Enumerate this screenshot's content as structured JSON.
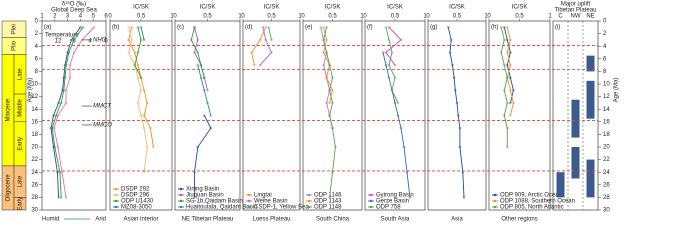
{
  "chart_data": [
    {
      "type": "timescale",
      "ylabel": "Age (Ma)",
      "ylim": [
        0,
        30
      ],
      "yticks": [
        0,
        2,
        4,
        6,
        8,
        10,
        12,
        14,
        16,
        18,
        20,
        22,
        24,
        26,
        28,
        30
      ],
      "hlines": [
        3.9,
        7.7,
        15.8,
        23.8
      ],
      "hline_color": "#d9452b",
      "epochs": [
        {
          "name": "Plei",
          "range": [
            0,
            2.6
          ],
          "color": "#fff6a8"
        },
        {
          "name": "Plio",
          "range": [
            2.6,
            5.3
          ],
          "color": "#ffff80"
        },
        {
          "name": "Miocene",
          "range": [
            5.3,
            23
          ],
          "color": "#ffff00"
        },
        {
          "name": "Oligocene",
          "range": [
            23,
            30
          ],
          "color": "#fdc07a"
        }
      ],
      "stages": [
        {
          "name": "Late",
          "range": [
            5.3,
            11.6
          ],
          "color": "#ffff00"
        },
        {
          "name": "Middle",
          "range": [
            11.6,
            16
          ],
          "color": "#ffff00"
        },
        {
          "name": "Early",
          "range": [
            16,
            23
          ],
          "color": "#ffff00"
        },
        {
          "name": "Late",
          "range": [
            23,
            28
          ],
          "color": "#fdc07a"
        },
        {
          "name": "Early",
          "range": [
            28,
            30
          ],
          "color": "#fdc07a"
        }
      ]
    },
    {
      "type": "line",
      "label": "(a)",
      "title": "δ¹⁸O (‰)",
      "subtitle": "Global Deep Sea",
      "xlim": [
        1,
        6
      ],
      "xticks": [
        1,
        2,
        3,
        4,
        5,
        6
      ],
      "x2label": "Temperature",
      "x2lim": [
        16,
        0
      ],
      "x2ticks": [
        12,
        8,
        4,
        0
      ],
      "bottom_labels": [
        "Humid",
        "Arid"
      ],
      "annotations": [
        {
          "text": "NHG",
          "age": 3
        },
        {
          "text": "MMCT",
          "age": 13.5
        },
        {
          "text": "MMCO",
          "age": 16.5
        }
      ],
      "ages": [
        1,
        3,
        5,
        7,
        9,
        11,
        13,
        15,
        17,
        20,
        24,
        28
      ],
      "series": [
        {
          "color": "#1d4f9a",
          "values": [
            4.0,
            3.3,
            3.0,
            2.8,
            2.7,
            2.6,
            2.3,
            1.9,
            1.7,
            1.9,
            2.2,
            2.3
          ]
        },
        {
          "color": "#e86fb0",
          "axis": "x2",
          "values": [
            3,
            6,
            8,
            9,
            9,
            10,
            10,
            12,
            13,
            12,
            11,
            10
          ]
        },
        {
          "color": "#2e9a3e",
          "values": [
            4.2,
            3.5,
            3.1,
            2.9,
            2.8,
            2.7,
            2.5,
            2.1,
            1.8,
            2.0,
            2.4,
            2.5
          ]
        }
      ]
    },
    {
      "type": "line",
      "label": "(b)",
      "title": "IC/SK",
      "xlabel": "Asian interior",
      "xlim": [
        0,
        1
      ],
      "xticks": [
        0,
        0.5,
        1
      ],
      "ages": [
        1,
        3,
        5,
        7,
        9,
        11,
        13,
        15,
        17,
        20,
        24,
        28
      ],
      "series": [
        {
          "name": "DSDP 292",
          "color": "#f28e2b",
          "values": [
            0.35,
            0.3,
            0.4,
            0.45,
            0.5,
            0.55,
            0.6,
            0.55,
            0.65,
            0.7,
            null,
            null
          ]
        },
        {
          "name": "DSDP 296",
          "color": "#f5b971",
          "values": [
            0.3,
            0.35,
            0.3,
            0.4,
            0.45,
            0.5,
            0.45,
            0.5,
            0.55,
            0.6,
            0.55,
            null
          ]
        },
        {
          "name": "ODP U1430",
          "color": "#2ca02c",
          "values": [
            0.45,
            0.5,
            0.45,
            0.4,
            0.5,
            null,
            null,
            null,
            null,
            null,
            null,
            null
          ]
        },
        {
          "name": "MZ08-3050",
          "color": "#1f77b4",
          "values": [
            0.5,
            0.55,
            null,
            null,
            null,
            null,
            null,
            null,
            null,
            null,
            null,
            null
          ]
        }
      ]
    },
    {
      "type": "line",
      "label": "(c)",
      "title": "IC/SK",
      "xlabel": "NE Tibetan Plateau",
      "xlim": [
        0,
        1
      ],
      "xticks": [
        0,
        0.5,
        1
      ],
      "ages": [
        1,
        3,
        5,
        7,
        9,
        11,
        13,
        15,
        17,
        20,
        24,
        28
      ],
      "series": [
        {
          "name": "Xining Basin",
          "color": "#1f4e9c",
          "values": [
            null,
            null,
            null,
            null,
            null,
            null,
            null,
            0.45,
            0.55,
            0.35,
            0.3,
            0.3
          ]
        },
        {
          "name": "Jiuquan Basin",
          "color": "#a05ad6",
          "values": [
            0.3,
            0.35,
            0.3,
            0.4,
            0.45,
            0.5,
            null,
            null,
            null,
            null,
            null,
            null
          ]
        },
        {
          "name": "SG-1b,Qaidam Basin",
          "color": "#2ca02c",
          "values": [
            0.3,
            0.25,
            0.35,
            0.4,
            0.45,
            null,
            null,
            null,
            null,
            null,
            null,
            null
          ]
        },
        {
          "name": "Huaitoutala, Qaidam Basin",
          "color": "#2b8c8c",
          "values": [
            null,
            null,
            null,
            0.35,
            0.4,
            0.45,
            0.5,
            0.55,
            null,
            null,
            null,
            null
          ]
        }
      ]
    },
    {
      "type": "line",
      "label": "(d)",
      "title": "IC/SK",
      "xlabel": "Loess Plateau",
      "xlim": [
        0,
        1
      ],
      "xticks": [
        0,
        0.5,
        1
      ],
      "ages": [
        1,
        3,
        5,
        7,
        9,
        11,
        13,
        15,
        17,
        20,
        24,
        28
      ],
      "series": [
        {
          "name": "Lingtai",
          "color": "#f28e2b",
          "values": [
            0.4,
            0.3,
            0.15,
            0.2,
            null,
            null,
            null,
            null,
            null,
            null,
            null,
            null
          ]
        },
        {
          "name": "Weihe Basin",
          "color": "#b15fd0",
          "values": [
            0.35,
            0.4,
            0.5,
            0.3,
            null,
            null,
            null,
            null,
            null,
            null,
            null,
            null
          ]
        },
        {
          "name": "CSDP-1, Yellow Sea",
          "color": "#59a14f",
          "values": [
            0.45,
            0.5,
            null,
            null,
            null,
            null,
            null,
            null,
            null,
            null,
            null,
            null
          ]
        }
      ]
    },
    {
      "type": "line",
      "label": "(e)",
      "title": "IC/SK",
      "xlabel": "South China",
      "xlim": [
        0,
        1
      ],
      "xticks": [
        0,
        0.5,
        1
      ],
      "ages": [
        1,
        3,
        5,
        7,
        9,
        11,
        13,
        15,
        17,
        20,
        24,
        28
      ],
      "series": [
        {
          "name": "ODP 1146",
          "color": "#b07ad6",
          "values": [
            0.3,
            0.35,
            0.4,
            0.35,
            0.4,
            0.45,
            0.4,
            0.45,
            0.5,
            null,
            null,
            null
          ]
        },
        {
          "name": "ODP 1143",
          "color": "#f28e2b",
          "values": [
            0.35,
            0.4,
            0.35,
            0.45,
            0.4,
            0.5,
            0.45,
            null,
            null,
            null,
            null,
            null
          ]
        },
        {
          "name": "ODP 1148",
          "color": "#59a14f",
          "values": [
            0.4,
            0.35,
            0.4,
            0.45,
            0.5,
            0.45,
            0.5,
            0.45,
            0.5,
            0.55,
            0.5,
            0.45
          ]
        }
      ]
    },
    {
      "type": "line",
      "label": "(f)",
      "title": "IC/SK",
      "xlabel": "South Asia",
      "xlim": [
        0,
        1
      ],
      "xticks": [
        0,
        0.5,
        1
      ],
      "ages": [
        1,
        3,
        5,
        7,
        9,
        11,
        13,
        15,
        17,
        20,
        24,
        28
      ],
      "series": [
        {
          "name": "Gyirong Basin",
          "color": "#e040c0",
          "values": [
            0.4,
            0.6,
            0.35,
            0.5,
            null,
            null,
            null,
            null,
            null,
            null,
            null,
            null
          ]
        },
        {
          "name": "Gerze Basin",
          "color": "#2f6db5",
          "values": [
            null,
            null,
            0.3,
            0.35,
            0.4,
            0.45,
            0.5,
            0.55,
            0.6,
            0.65,
            0.7,
            0.75
          ]
        },
        {
          "name": "ODP 758",
          "color": "#59a14f",
          "values": [
            0.35,
            0.4,
            0.45,
            0.4,
            0.5,
            0.45,
            0.55,
            null,
            null,
            null,
            null,
            null
          ]
        }
      ]
    },
    {
      "type": "line",
      "label": "(g)",
      "title": "IC/SK",
      "xlabel": "Asia",
      "xlim": [
        0,
        1
      ],
      "xticks": [
        0,
        0.5,
        1
      ],
      "ages": [
        1,
        3,
        5,
        7,
        9,
        11,
        13,
        15,
        17,
        20,
        24,
        28
      ],
      "color": "#1d4f9a",
      "values": [
        0.35,
        0.4,
        0.38,
        0.42,
        0.45,
        0.47,
        0.5,
        0.52,
        0.55,
        0.55,
        0.6,
        0.62
      ]
    },
    {
      "type": "line",
      "label": "(h)",
      "title": "IC/SK",
      "xlabel": "Other regions",
      "xlim": [
        0,
        1
      ],
      "xticks": [
        0,
        0.5,
        1
      ],
      "ages": [
        1,
        3,
        5,
        7,
        9,
        11,
        13,
        15,
        17,
        20,
        24,
        28
      ],
      "series": [
        {
          "name": "ODP 909, Arctic Ocean",
          "color": "#1f4e9c",
          "values": [
            0.25,
            0.3,
            0.35,
            0.3,
            0.35,
            0.4,
            0.35,
            null,
            null,
            null,
            null,
            null
          ]
        },
        {
          "name": "ODP 1088, Southern Ocean",
          "color": "#f28e2b",
          "values": [
            0.3,
            0.35,
            0.3,
            0.35,
            0.3,
            0.35,
            0.4,
            0.35,
            null,
            null,
            null,
            null
          ]
        },
        {
          "name": "ODP 805, North Atlantic",
          "color": "#59a14f",
          "values": [
            0.2,
            0.25,
            0.2,
            0.25,
            0.3,
            0.25,
            0.3,
            0.25,
            0.3,
            0.3,
            null,
            null
          ]
        }
      ]
    },
    {
      "type": "range",
      "label": "(i)",
      "title": "Major uplift",
      "subtitle": "Tibetan Plateau",
      "categories": [
        "C",
        "NW",
        "NE"
      ],
      "color": "#3b5b8c",
      "ranges": [
        [
          [
            24,
            28
          ]
        ],
        [
          [
            12.5,
            18.5
          ],
          [
            20,
            25
          ]
        ],
        [
          [
            5.5,
            8
          ],
          [
            9.5,
            15.5
          ],
          [
            22,
            28
          ]
        ]
      ]
    }
  ]
}
